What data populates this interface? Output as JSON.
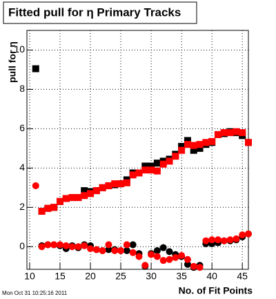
{
  "chart_data": {
    "type": "scatter",
    "title": "Fitted pull for  η Primary Tracks",
    "x_label": "No. of Fit Points",
    "y_label": "pull for η",
    "x": [
      11,
      12,
      13,
      14,
      15,
      16,
      17,
      18,
      19,
      20,
      21,
      22,
      23,
      24,
      25,
      26,
      27,
      28,
      29,
      30,
      31,
      32,
      33,
      34,
      35,
      36,
      37,
      38,
      39,
      40,
      41,
      42,
      43,
      44,
      45,
      46
    ],
    "series": [
      {
        "marker": "square",
        "color": "#000000",
        "values": [
          9.05,
          1.8,
          1.95,
          2.0,
          2.3,
          2.45,
          2.5,
          2.5,
          2.85,
          2.8,
          2.85,
          3.0,
          3.1,
          3.15,
          3.2,
          3.4,
          3.75,
          3.75,
          4.1,
          4.1,
          4.25,
          4.35,
          4.45,
          4.7,
          5.1,
          5.4,
          4.9,
          5.0,
          5.2,
          5.3,
          5.7,
          5.75,
          5.85,
          5.8,
          5.65,
          5.3
        ]
      },
      {
        "marker": "square",
        "color": "#ff0000",
        "values": [
          null,
          1.8,
          1.95,
          2.0,
          2.3,
          2.45,
          2.5,
          2.5,
          2.6,
          2.7,
          2.85,
          3.0,
          3.1,
          3.2,
          3.2,
          3.25,
          3.65,
          3.75,
          3.9,
          3.9,
          3.85,
          4.2,
          4.35,
          4.6,
          4.9,
          5.2,
          5.15,
          5.2,
          5.3,
          5.35,
          5.7,
          5.8,
          5.8,
          5.85,
          5.8,
          5.3
        ]
      },
      {
        "marker": "circle",
        "color": "#000000",
        "values": [
          null,
          0.05,
          0.1,
          0.1,
          0.05,
          -0.1,
          0.05,
          -0.05,
          0.1,
          0.05,
          -0.15,
          -0.2,
          -0.15,
          -0.15,
          -0.2,
          -0.2,
          0.1,
          -0.35,
          -1.0,
          -0.35,
          -0.2,
          -0.05,
          -0.25,
          -0.4,
          -0.5,
          -0.9,
          -1.05,
          -0.95,
          0.15,
          0.15,
          0.2,
          0.3,
          0.3,
          0.35,
          0.5,
          0.65
        ]
      },
      {
        "marker": "circle",
        "color": "#ff0000",
        "values": [
          3.1,
          0.0,
          0.1,
          0.1,
          0.1,
          0.05,
          0.0,
          0.0,
          0.05,
          -0.1,
          -0.15,
          -0.2,
          0.1,
          -0.2,
          -0.2,
          0.1,
          -0.3,
          -0.5,
          -0.95,
          -0.4,
          -0.5,
          -0.7,
          -0.65,
          -0.55,
          -0.45,
          -0.65,
          -1.0,
          -1.05,
          0.3,
          0.35,
          0.35,
          0.3,
          0.35,
          0.4,
          0.6,
          0.65
        ]
      }
    ],
    "xlim": [
      9.55,
      46.0
    ],
    "ylim": [
      -1.15,
      11.0
    ],
    "xticks": [
      10,
      15,
      20,
      25,
      30,
      35,
      40,
      45
    ],
    "yticks": [
      0,
      2,
      4,
      6,
      8,
      10
    ],
    "grid": true
  },
  "footer": {
    "timestamp": "Mon Oct 31 10:25:16 2011"
  }
}
